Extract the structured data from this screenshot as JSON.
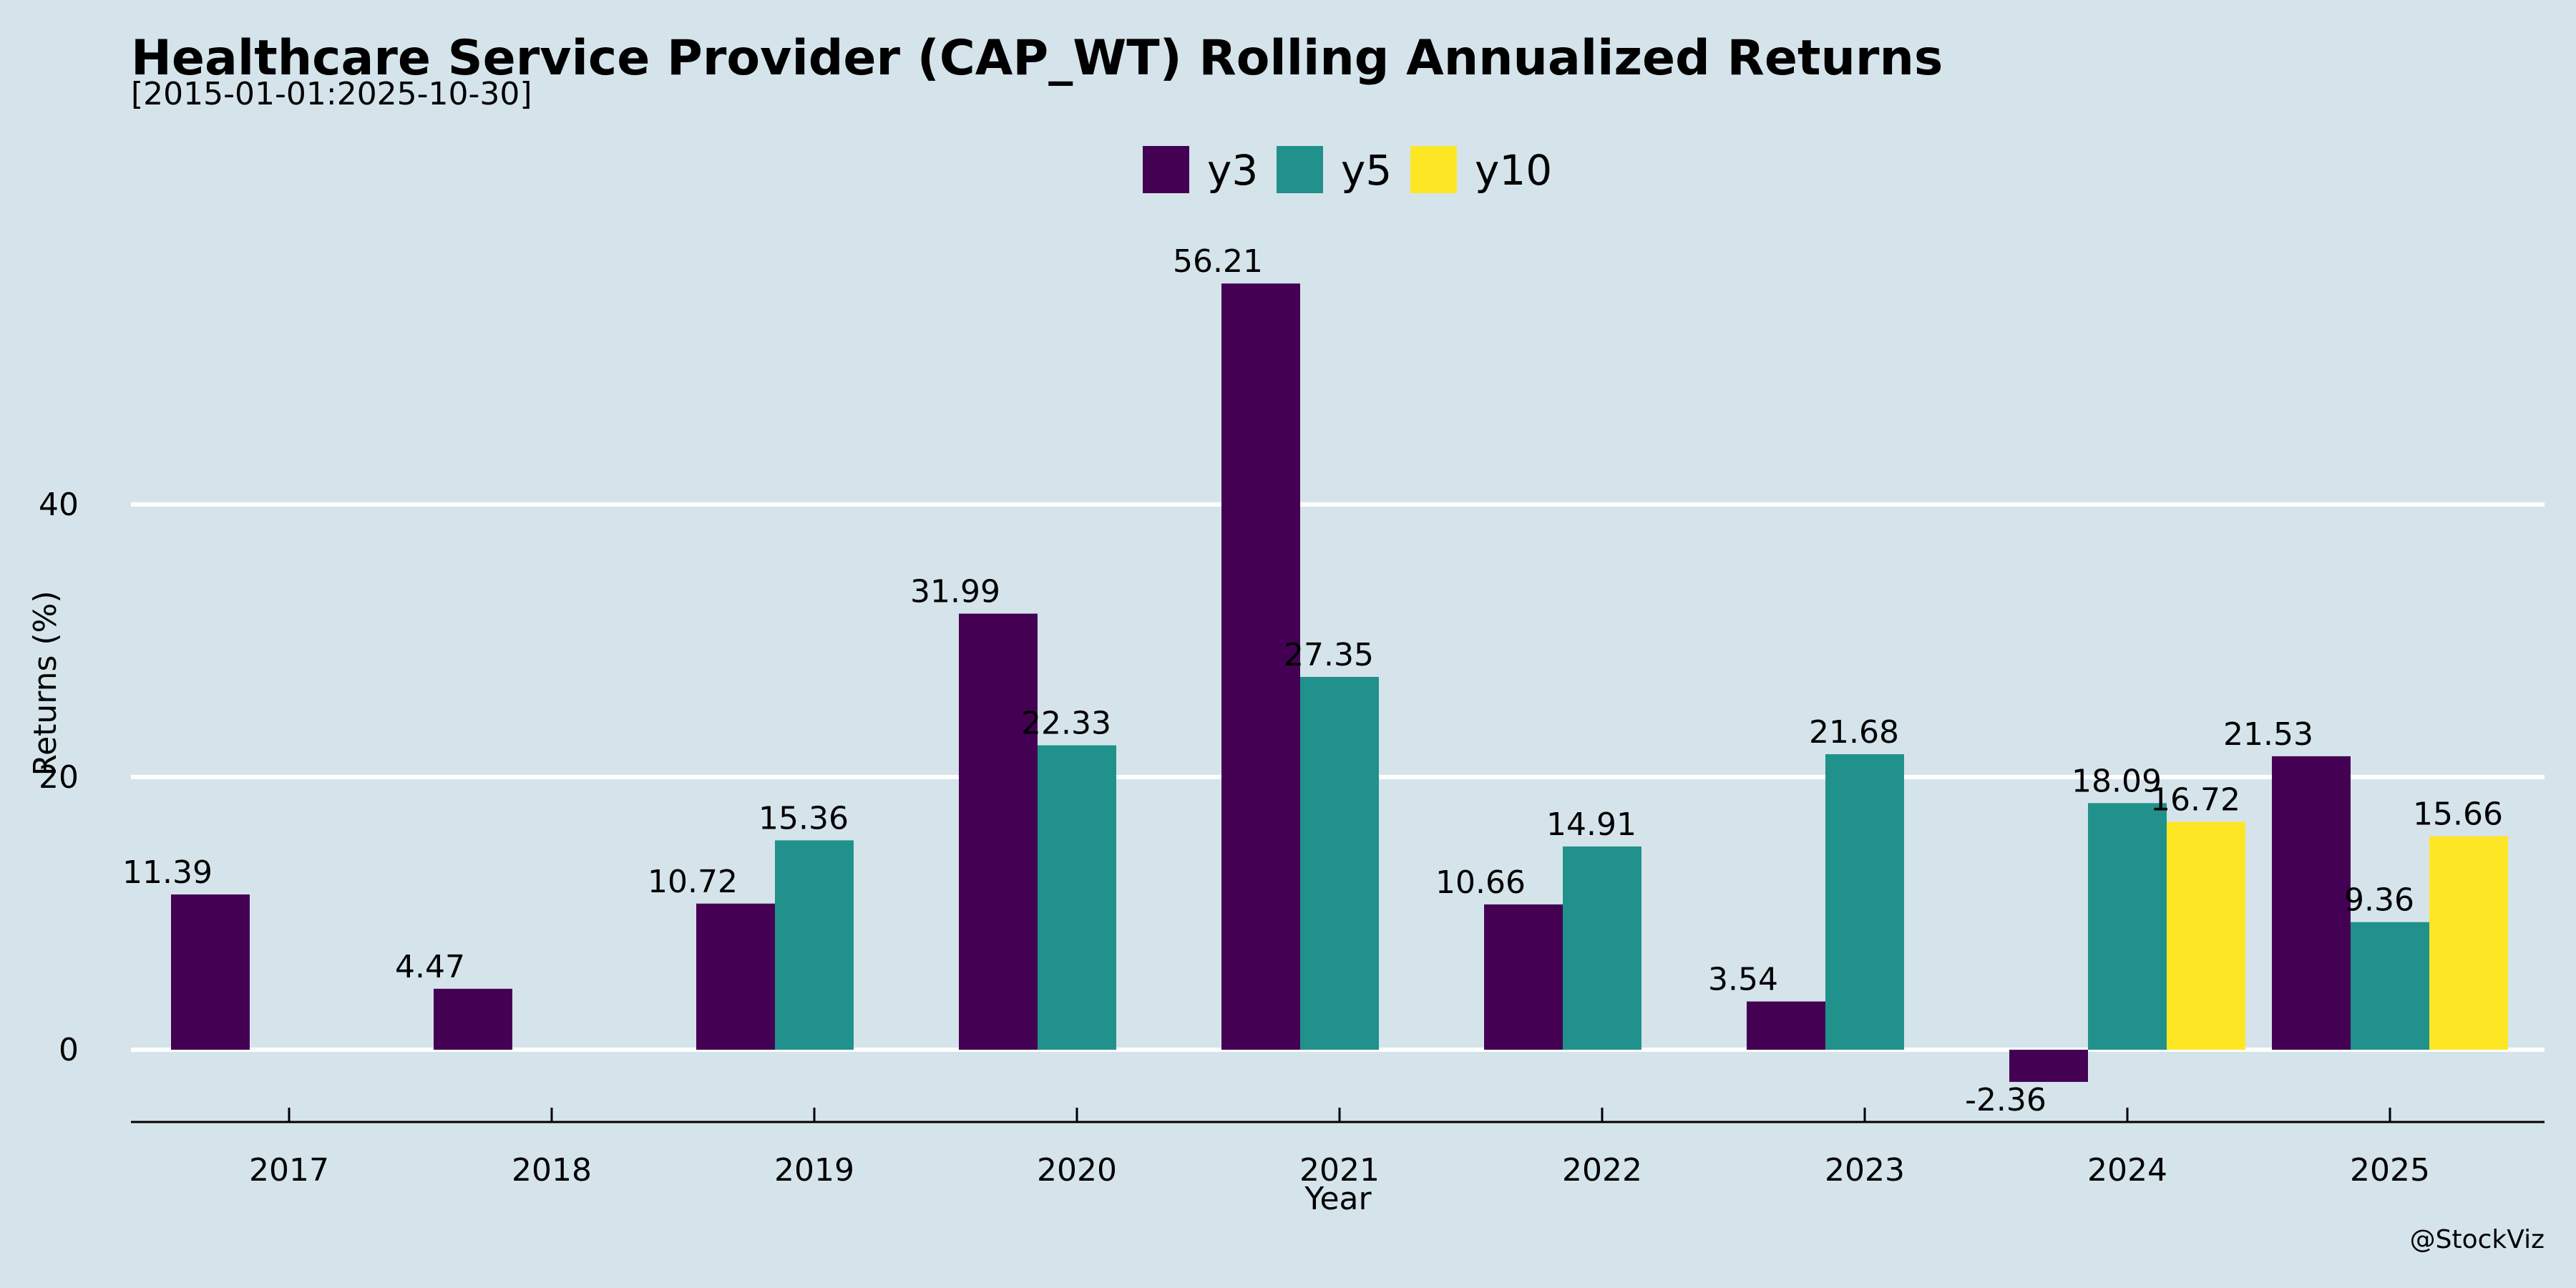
{
  "chart_data": {
    "type": "bar",
    "title": "Healthcare Service Provider (CAP_WT) Rolling Annualized Returns",
    "subtitle": "[2015-01-01:2025-10-30]",
    "xlabel": "Year",
    "ylabel": "Returns (%)",
    "credit": "@StockViz",
    "categories": [
      "2017",
      "2018",
      "2019",
      "2020",
      "2021",
      "2022",
      "2023",
      "2024",
      "2025"
    ],
    "series": [
      {
        "name": "y3",
        "color": "#440154",
        "values": [
          11.39,
          4.47,
          10.72,
          31.99,
          56.21,
          10.66,
          3.54,
          -2.36,
          21.53
        ]
      },
      {
        "name": "y5",
        "color": "#21918c",
        "values": [
          null,
          null,
          15.36,
          22.33,
          27.35,
          14.91,
          21.68,
          18.09,
          9.36
        ]
      },
      {
        "name": "y10",
        "color": "#fde725",
        "values": [
          null,
          null,
          null,
          null,
          null,
          null,
          null,
          16.72,
          15.66
        ]
      }
    ],
    "ylim": [
      -5.3,
      63.3
    ],
    "yticks": [
      0,
      20,
      40
    ],
    "grid": true,
    "legend_position": "top-center"
  }
}
